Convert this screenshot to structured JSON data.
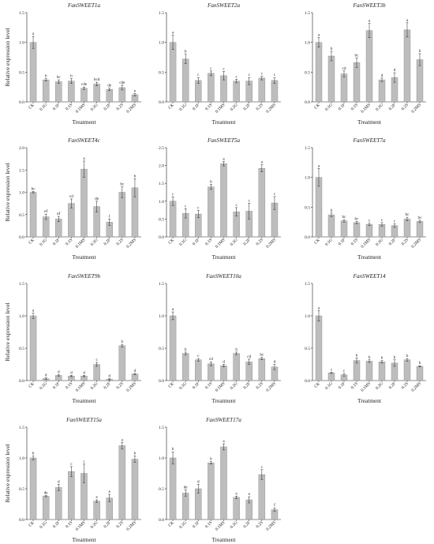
{
  "chart_data": [
    {
      "type": "bar",
      "title": "FanSWEET1a",
      "xlabel": "Treatment",
      "ylabel": "Relative expression level",
      "categories": [
        "CK",
        "0.1G",
        "0.1F",
        "0.1S",
        "0.1MS",
        "0.2G",
        "0.2F",
        "0.2S",
        "0.2MS"
      ],
      "values": [
        1.0,
        0.37,
        0.34,
        0.35,
        0.23,
        0.3,
        0.21,
        0.24,
        0.12
      ],
      "errors": [
        0.1,
        0.02,
        0.03,
        0.04,
        0.02,
        0.03,
        0.02,
        0.04,
        0.02
      ],
      "letters": [
        "a",
        "b",
        "bc",
        "b",
        "cde",
        "bcd",
        "de",
        "cde",
        "e"
      ],
      "yticks": [
        "0.0",
        "0.5",
        "1.0",
        "1.5"
      ],
      "ylim": [
        0,
        1.5
      ]
    },
    {
      "type": "bar",
      "title": "FanSWEET2a",
      "xlabel": "Treatment",
      "ylabel": "",
      "categories": [
        "CK",
        "0.1G",
        "0.1F",
        "0.1S",
        "0.1MS",
        "0.2G",
        "0.2F",
        "0.2S",
        "0.2MS"
      ],
      "values": [
        1.0,
        0.72,
        0.36,
        0.48,
        0.44,
        0.35,
        0.35,
        0.4,
        0.36
      ],
      "errors": [
        0.12,
        0.08,
        0.05,
        0.04,
        0.07,
        0.03,
        0.06,
        0.03,
        0.05
      ],
      "letters": [
        "a",
        "b",
        "c",
        "c",
        "c",
        "c",
        "c",
        "c",
        "c"
      ],
      "yticks": [
        "0.0",
        "0.5",
        "1.0",
        "1.5"
      ],
      "ylim": [
        0,
        1.5
      ]
    },
    {
      "type": "bar",
      "title": "FanSWEET3b",
      "xlabel": "Treatment",
      "ylabel": "",
      "categories": [
        "CK",
        "0.1G",
        "0.1F",
        "0.1S",
        "0.1MS",
        "0.2G",
        "0.2F",
        "0.2S",
        "0.2MS"
      ],
      "values": [
        1.0,
        0.77,
        0.47,
        0.66,
        1.2,
        0.37,
        0.41,
        1.21,
        0.71
      ],
      "errors": [
        0.08,
        0.08,
        0.05,
        0.08,
        0.12,
        0.03,
        0.08,
        0.12,
        0.1
      ],
      "letters": [
        "a",
        "b",
        "cd",
        "bc",
        "a",
        "d",
        "d",
        "a",
        "b"
      ],
      "yticks": [
        "0.0",
        "0.5",
        "1.0",
        "1.5"
      ],
      "ylim": [
        0,
        1.5
      ]
    },
    {
      "type": "bar",
      "title": "FanSWEET4c",
      "xlabel": "Treatment",
      "ylabel": "Relative expression level",
      "categories": [
        "CK",
        "0.1G",
        "0.1F",
        "0.1S",
        "0.1MS",
        "0.2G",
        "0.2F",
        "0.2S",
        "0.2MS"
      ],
      "values": [
        1.0,
        0.45,
        0.4,
        0.75,
        1.52,
        0.68,
        0.33,
        1.0,
        1.1
      ],
      "errors": [
        0.02,
        0.06,
        0.06,
        0.1,
        0.18,
        0.12,
        0.07,
        0.12,
        0.2
      ],
      "letters": [
        "bc",
        "ef",
        "ef",
        "cd",
        "a",
        "de",
        "f",
        "bc",
        "b"
      ],
      "yticks": [
        "0.0",
        "0.5",
        "1.0",
        "1.5",
        "2.0"
      ],
      "ylim": [
        0,
        2.0
      ]
    },
    {
      "type": "bar",
      "title": "FanSWEET5a",
      "xlabel": "Treatment",
      "ylabel": "",
      "categories": [
        "CK",
        "0.1G",
        "0.1F",
        "0.1S",
        "0.1MS",
        "0.2G",
        "0.2F",
        "0.2S",
        "0.2MS"
      ],
      "values": [
        1.0,
        0.66,
        0.64,
        1.4,
        2.05,
        0.7,
        0.72,
        1.92,
        0.95
      ],
      "errors": [
        0.12,
        0.13,
        0.1,
        0.07,
        0.06,
        0.12,
        0.22,
        0.1,
        0.18
      ],
      "letters": [
        "c",
        "c",
        "c",
        "b",
        "a",
        "c",
        "c",
        "a",
        "c"
      ],
      "yticks": [
        "0.0",
        "0.5",
        "1.0",
        "1.5",
        "2.0",
        "2.5"
      ],
      "ylim": [
        0,
        2.5
      ]
    },
    {
      "type": "bar",
      "title": "FanSWEET7a",
      "xlabel": "Treatment",
      "ylabel": "",
      "categories": [
        "CK",
        "0.1G",
        "0.1F",
        "0.1S",
        "0.1MS",
        "0.2G",
        "0.2F",
        "0.2S",
        "0.2MS"
      ],
      "values": [
        1.0,
        0.37,
        0.27,
        0.24,
        0.21,
        0.21,
        0.19,
        0.3,
        0.26
      ],
      "errors": [
        0.15,
        0.03,
        0.02,
        0.02,
        0.02,
        0.03,
        0.03,
        0.03,
        0.02
      ],
      "letters": [
        "a",
        "b",
        "bc",
        "bc",
        "c",
        "c",
        "c",
        "bc",
        "bc"
      ],
      "yticks": [
        "0.0",
        "0.5",
        "1.0",
        "1.5"
      ],
      "ylim": [
        0,
        1.5
      ]
    },
    {
      "type": "bar",
      "title": "FanSWEET9b",
      "xlabel": "Treatment",
      "ylabel": "Relative expression level",
      "categories": [
        "CK",
        "0.1G",
        "0.1F",
        "0.1S",
        "0.1MS",
        "0.2G",
        "0.2F",
        "0.2S",
        "0.2MS"
      ],
      "values": [
        1.0,
        0.03,
        0.08,
        0.07,
        0.07,
        0.25,
        0.02,
        0.54,
        0.1
      ],
      "errors": [
        0.04,
        0.01,
        0.01,
        0.01,
        0.01,
        0.03,
        0.01,
        0.02,
        0.01
      ],
      "letters": [
        "a",
        "d",
        "d",
        "d",
        "d",
        "c",
        "d",
        "b",
        "d"
      ],
      "yticks": [
        "0.0",
        "0.5",
        "1.0",
        "1.5"
      ],
      "ylim": [
        0,
        1.5
      ]
    },
    {
      "type": "bar",
      "title": "FanSWEET10a",
      "xlabel": "Treatment",
      "ylabel": "",
      "categories": [
        "CK",
        "0.1G",
        "0.1F",
        "0.1S",
        "0.1MS",
        "0.2G",
        "0.2F",
        "0.2S",
        "0.2MS"
      ],
      "values": [
        1.0,
        0.42,
        0.32,
        0.26,
        0.23,
        0.42,
        0.29,
        0.34,
        0.21
      ],
      "errors": [
        0.06,
        0.02,
        0.02,
        0.03,
        0.02,
        0.02,
        0.04,
        0.02,
        0.04
      ],
      "letters": [
        "a",
        "b",
        "c",
        "cd",
        "d",
        "b",
        "cd",
        "bc",
        "d"
      ],
      "yticks": [
        "0.0",
        "0.5",
        "1.0",
        "1.5"
      ],
      "ylim": [
        0,
        1.5
      ]
    },
    {
      "type": "bar",
      "title": "FanSWEET14",
      "xlabel": "Treatment",
      "ylabel": "",
      "categories": [
        "CK",
        "0.1G",
        "0.1F",
        "0.1S",
        "0.1MS",
        "0.2G",
        "0.2F",
        "0.2S",
        "0.2MS"
      ],
      "values": [
        1.0,
        0.12,
        0.09,
        0.31,
        0.3,
        0.29,
        0.27,
        0.32,
        0.22
      ],
      "errors": [
        0.08,
        0.01,
        0.02,
        0.04,
        0.02,
        0.02,
        0.05,
        0.02,
        0.01
      ],
      "letters": [
        "a",
        "c",
        "c",
        "b",
        "b",
        "b",
        "b",
        "b",
        "b"
      ],
      "yticks": [
        "0.0",
        "0.5",
        "1.0",
        "1.5"
      ],
      "ylim": [
        0,
        1.5
      ]
    },
    {
      "type": "bar",
      "title": "FanSWEET15a",
      "xlabel": "Treatment",
      "ylabel": "Relative expression level",
      "categories": [
        "CK",
        "0.1G",
        "0.1F",
        "0.1S",
        "0.1MS",
        "0.2G",
        "0.2F",
        "0.2S",
        "0.2MS"
      ],
      "values": [
        1.0,
        0.38,
        0.52,
        0.78,
        0.75,
        0.3,
        0.35,
        1.2,
        0.98
      ],
      "errors": [
        0.03,
        0.01,
        0.05,
        0.08,
        0.15,
        0.02,
        0.06,
        0.05,
        0.05
      ],
      "letters": [
        "b",
        "de",
        "d",
        "c",
        "c",
        "e",
        "e",
        "a",
        "b"
      ],
      "yticks": [
        "0.0",
        "0.5",
        "1.0",
        "1.5"
      ],
      "ylim": [
        0,
        1.5
      ]
    },
    {
      "type": "bar",
      "title": "FanSWEET17a",
      "xlabel": "Treatment",
      "ylabel": "",
      "categories": [
        "CK",
        "0.1G",
        "0.1F",
        "0.1S",
        "0.1MS",
        "0.2G",
        "0.2F",
        "0.2S",
        "0.2MS"
      ],
      "values": [
        1.0,
        0.43,
        0.5,
        0.92,
        1.18,
        0.36,
        0.32,
        0.73,
        0.16
      ],
      "errors": [
        0.1,
        0.05,
        0.07,
        0.02,
        0.05,
        0.02,
        0.05,
        0.08,
        0.03
      ],
      "letters": [
        "b",
        "de",
        "d",
        "b",
        "a",
        "e",
        "e",
        "c",
        "f"
      ],
      "yticks": [
        "0.0",
        "0.5",
        "1.0",
        "1.5"
      ],
      "ylim": [
        0,
        1.5
      ]
    }
  ],
  "colors": {
    "bar_fill": "#bdbdbd",
    "bar_stroke": "#8a8a8a",
    "axis": "#222222",
    "text": "#222222"
  }
}
